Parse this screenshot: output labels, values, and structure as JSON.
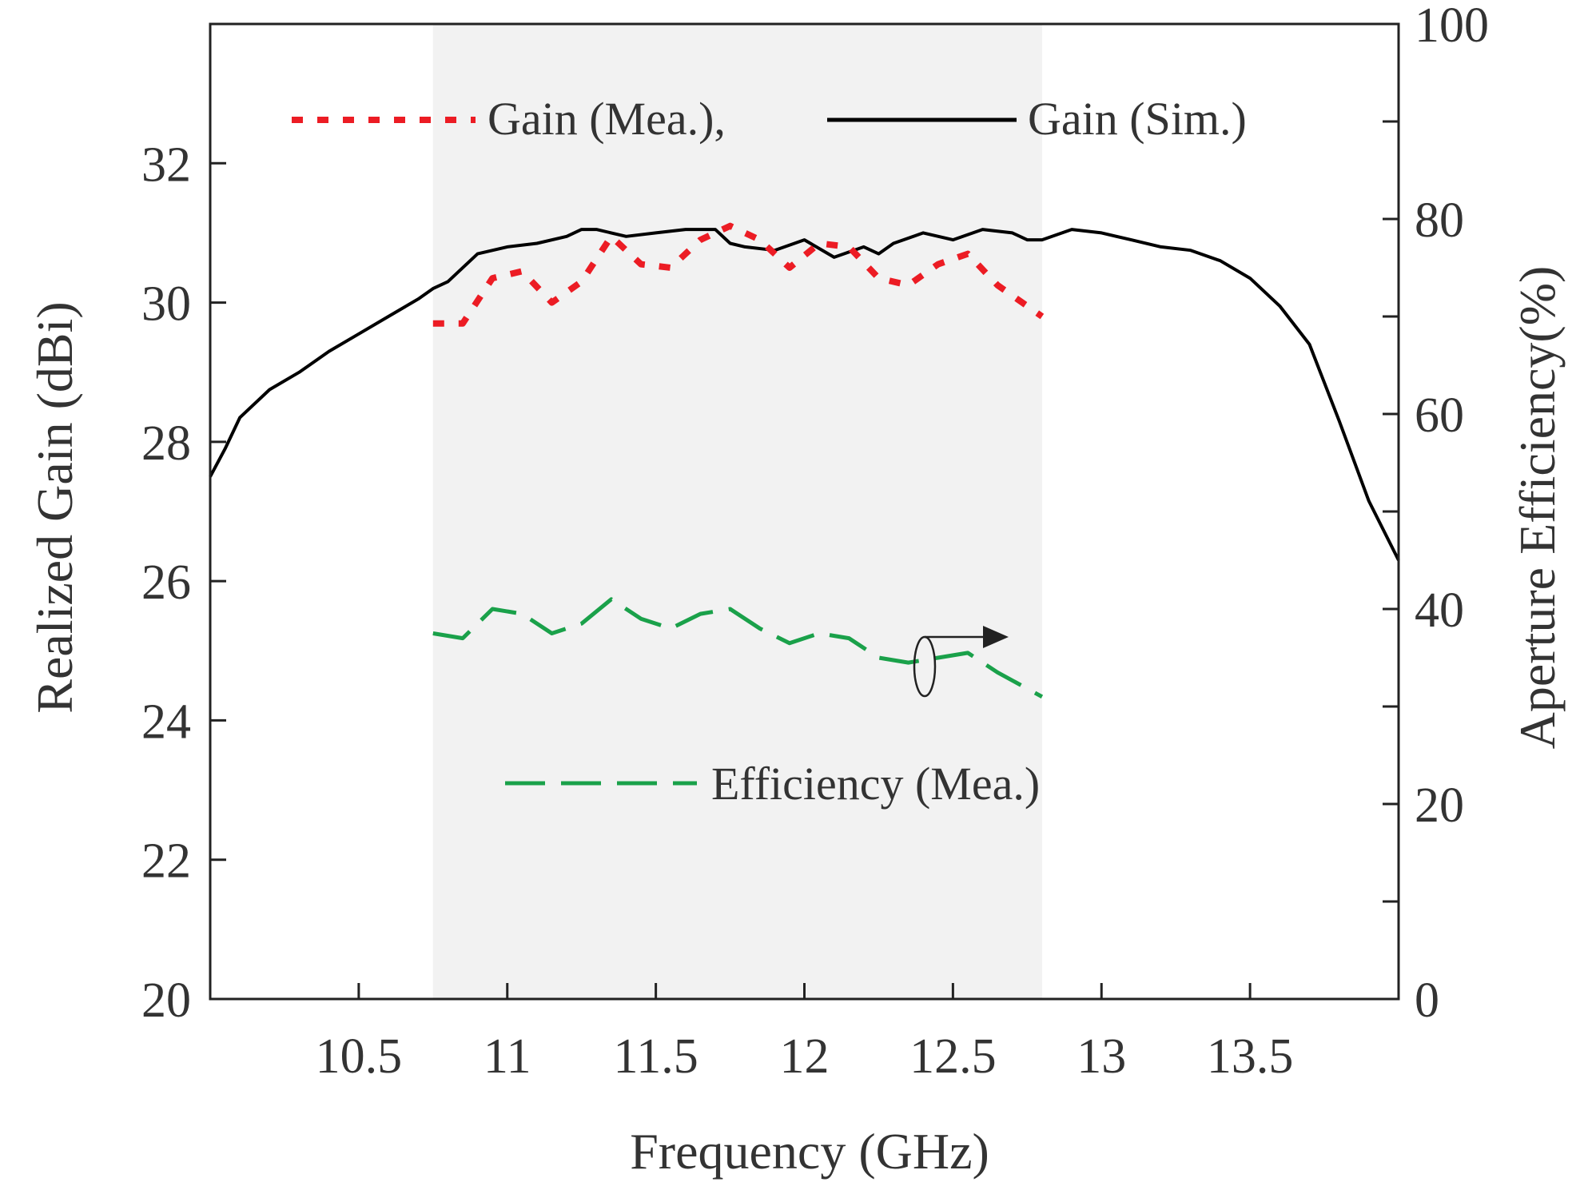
{
  "chart_data": {
    "type": "line",
    "title": "",
    "xlabel": "Frequency (GHz)",
    "ylabel": "Realized Gain (dBi)",
    "y2label": "Aperture Efficiency(%)",
    "xlim": [
      10.0,
      14.0
    ],
    "ylim": [
      20,
      34
    ],
    "y2lim": [
      0,
      100
    ],
    "xticks": [
      10.5,
      11,
      11.5,
      12,
      12.5,
      13,
      13.5
    ],
    "xtick_labels": [
      "10.5",
      "11",
      "11.5",
      "12",
      "12.5",
      "13",
      "13.5"
    ],
    "yticks": [
      20,
      22,
      24,
      26,
      28,
      30,
      32
    ],
    "ytick_labels": [
      "20",
      "22",
      "24",
      "26",
      "28",
      "30",
      "32"
    ],
    "y2ticks": [
      0,
      20,
      40,
      60,
      80,
      100
    ],
    "y2tick_labels": [
      "0",
      "20",
      "40",
      "60",
      "80",
      "100"
    ],
    "y2minor": [
      10,
      30,
      50,
      70,
      90
    ],
    "shaded_band": [
      10.75,
      12.8
    ],
    "grid": false,
    "series": [
      {
        "name": "Gain (Sim.)",
        "legend": "Gain (Sim.)",
        "axis": "left",
        "color": "#000000",
        "dash": "solid",
        "x": [
          10.0,
          10.05,
          10.1,
          10.15,
          10.2,
          10.3,
          10.4,
          10.5,
          10.6,
          10.7,
          10.75,
          10.8,
          10.9,
          11.0,
          11.1,
          11.2,
          11.25,
          11.3,
          11.4,
          11.5,
          11.6,
          11.7,
          11.75,
          11.8,
          11.9,
          12.0,
          12.1,
          12.2,
          12.25,
          12.3,
          12.4,
          12.5,
          12.6,
          12.7,
          12.75,
          12.8,
          12.9,
          13.0,
          13.1,
          13.2,
          13.3,
          13.4,
          13.5,
          13.6,
          13.7,
          13.8,
          13.9,
          14.0
        ],
        "values": [
          27.5,
          27.9,
          28.35,
          28.55,
          28.75,
          29.0,
          29.3,
          29.55,
          29.8,
          30.05,
          30.2,
          30.3,
          30.7,
          30.8,
          30.85,
          30.95,
          31.05,
          31.05,
          30.95,
          31.0,
          31.05,
          31.05,
          30.85,
          30.8,
          30.75,
          30.9,
          30.65,
          30.8,
          30.7,
          30.85,
          31.0,
          30.9,
          31.05,
          31.0,
          30.9,
          30.9,
          31.05,
          31.0,
          30.9,
          30.8,
          30.75,
          30.6,
          30.35,
          29.95,
          29.4,
          28.3,
          27.15,
          26.3
        ]
      },
      {
        "name": "Gain (Mea.)",
        "legend": "Gain (Mea.),",
        "axis": "left",
        "color": "#ec1c24",
        "dash": "dotted",
        "x": [
          10.75,
          10.85,
          10.95,
          11.05,
          11.15,
          11.25,
          11.35,
          11.45,
          11.55,
          11.65,
          11.75,
          11.85,
          11.95,
          12.05,
          12.15,
          12.25,
          12.35,
          12.45,
          12.55,
          12.65,
          12.8
        ],
        "values": [
          29.7,
          29.7,
          30.35,
          30.45,
          30.0,
          30.3,
          30.95,
          30.55,
          30.5,
          30.9,
          31.1,
          30.9,
          30.5,
          30.85,
          30.8,
          30.35,
          30.25,
          30.55,
          30.7,
          30.25,
          29.8
        ]
      },
      {
        "name": "Efficiency (Mea.)",
        "legend": "Efficiency (Mea.)",
        "axis": "right",
        "color": "#1aa14a",
        "dash": "dashed",
        "x": [
          10.75,
          10.85,
          10.95,
          11.05,
          11.15,
          11.25,
          11.35,
          11.45,
          11.55,
          11.65,
          11.75,
          11.85,
          11.95,
          12.05,
          12.15,
          12.25,
          12.35,
          12.45,
          12.55,
          12.65,
          12.8
        ],
        "values": [
          37.5,
          37.0,
          40.0,
          39.5,
          37.5,
          38.5,
          41.0,
          39.0,
          38.0,
          39.5,
          40.0,
          38.0,
          36.5,
          37.5,
          37.0,
          35.0,
          34.5,
          35.0,
          35.5,
          33.5,
          31.0
        ]
      }
    ]
  }
}
